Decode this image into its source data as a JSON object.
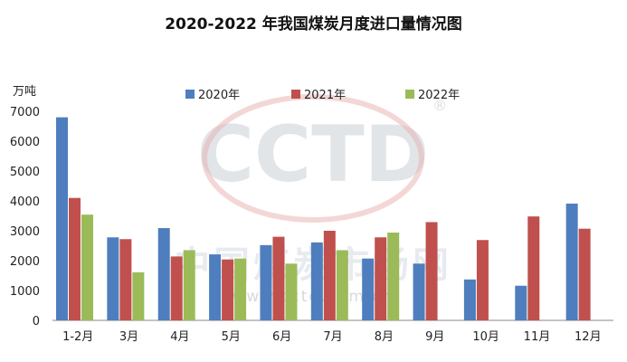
{
  "title": "2020-2022 年我国煤炭月度进口量情况图",
  "watermark": {
    "logo_text": "CCTD",
    "registered": "®",
    "cn_text": "中国煤炭市场网",
    "url_text": "www.cctd.com.cn"
  },
  "chart_data": {
    "type": "bar",
    "title": "2020-2022 年我国煤炭月度进口量情况图",
    "ylabel": "万吨",
    "xlabel": "",
    "ylim": [
      0,
      7000
    ],
    "yticks": [
      0,
      1000,
      2000,
      3000,
      4000,
      5000,
      6000,
      7000
    ],
    "grid": false,
    "legend_position": "top",
    "categories": [
      "1-2月",
      "3月",
      "4月",
      "5月",
      "6月",
      "7月",
      "8月",
      "9月",
      "10月",
      "11月",
      "12月"
    ],
    "series": [
      {
        "name": "2020年",
        "color": "#4F7EBE",
        "values": [
          6800,
          2780,
          3090,
          2210,
          2520,
          2610,
          2070,
          1900,
          1370,
          1160,
          3910
        ]
      },
      {
        "name": "2021年",
        "color": "#C0504D",
        "values": [
          4100,
          2720,
          2140,
          2040,
          2800,
          3000,
          2780,
          3290,
          2690,
          3480,
          3070
        ]
      },
      {
        "name": "2022年",
        "color": "#9BBB59",
        "values": [
          3540,
          1610,
          2350,
          2070,
          1900,
          2350,
          2940,
          null,
          null,
          null,
          null
        ]
      }
    ]
  }
}
